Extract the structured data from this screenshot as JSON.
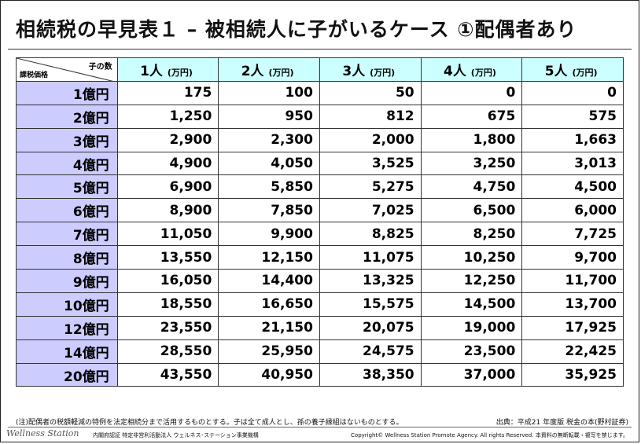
{
  "title": "相続税の早見表１ – 被相続人に子がいるケース ①配偶者あり",
  "corner": {
    "column_axis": "子の数",
    "row_axis": "課税価格"
  },
  "unit": "(万円)",
  "columns": [
    "1人",
    "2人",
    "3人",
    "4人",
    "5人"
  ],
  "rows": [
    {
      "label": "1億円",
      "values": [
        "175",
        "100",
        "50",
        "0",
        "0"
      ]
    },
    {
      "label": "2億円",
      "values": [
        "1,250",
        "950",
        "812",
        "675",
        "575"
      ]
    },
    {
      "label": "3億円",
      "values": [
        "2,900",
        "2,300",
        "2,000",
        "1,800",
        "1,663"
      ]
    },
    {
      "label": "4億円",
      "values": [
        "4,900",
        "4,050",
        "3,525",
        "3,250",
        "3,013"
      ]
    },
    {
      "label": "5億円",
      "values": [
        "6,900",
        "5,850",
        "5,275",
        "4,750",
        "4,500"
      ]
    },
    {
      "label": "6億円",
      "values": [
        "8,900",
        "7,850",
        "7,025",
        "6,500",
        "6,000"
      ]
    },
    {
      "label": "7億円",
      "values": [
        "11,050",
        "9,900",
        "8,825",
        "8,250",
        "7,725"
      ]
    },
    {
      "label": "8億円",
      "values": [
        "13,550",
        "12,150",
        "11,075",
        "10,250",
        "9,700"
      ]
    },
    {
      "label": "9億円",
      "values": [
        "16,050",
        "14,400",
        "13,325",
        "12,250",
        "11,700"
      ]
    },
    {
      "label": "10億円",
      "values": [
        "18,550",
        "16,650",
        "15,575",
        "14,500",
        "13,700"
      ]
    },
    {
      "label": "12億円",
      "values": [
        "23,550",
        "21,150",
        "20,075",
        "19,000",
        "17,925"
      ]
    },
    {
      "label": "14億円",
      "values": [
        "28,550",
        "25,950",
        "24,575",
        "23,500",
        "22,425"
      ]
    },
    {
      "label": "20億円",
      "values": [
        "43,550",
        "40,950",
        "38,350",
        "37,000",
        "35,925"
      ]
    }
  ],
  "note": "(注)配偶者の税額軽減の特例を法定相続分まで活用するものとする。子は全て成人とし、孫の養子縁組はないものとする。",
  "source": "出典：平成21 年度版 税金の本(野村証券)",
  "footer": {
    "logo": "Wellness Station",
    "org": "内閣府認証 特定非営利活動法人 ウェルネス･ステーション事業機構",
    "copyright": "Copyright© Wellness Station Promote Agency. All rights Reserved. 本資料の無断転載・複写を禁じます。"
  }
}
